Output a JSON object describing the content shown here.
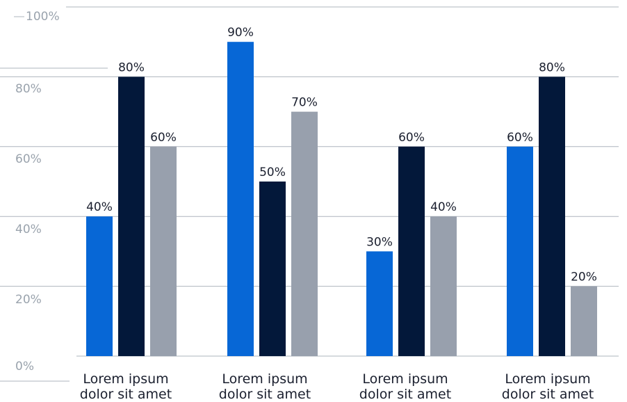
{
  "chart_data": {
    "type": "bar",
    "title": "",
    "xlabel": "",
    "ylabel": "",
    "ylim": [
      0,
      100
    ],
    "yticks": [
      "0%",
      "20%",
      "40%",
      "60%",
      "80%",
      "100%"
    ],
    "grid": true,
    "legend": "none",
    "categories": [
      [
        "Lorem ipsum",
        "dolor sit amet"
      ],
      [
        "Lorem ipsum",
        "dolor sit amet"
      ],
      [
        "Lorem ipsum",
        "dolor sit amet"
      ],
      [
        "Lorem ipsum",
        "dolor sit amet"
      ]
    ],
    "series": [
      {
        "color": "#0767d6",
        "values": [
          40,
          90,
          30,
          60
        ],
        "labels": [
          "40%",
          "90%",
          "30%",
          "60%"
        ]
      },
      {
        "color": "#03183a",
        "values": [
          80,
          50,
          60,
          80
        ],
        "labels": [
          "80%",
          "50%",
          "60%",
          "80%"
        ]
      },
      {
        "color": "#98a0ad",
        "values": [
          60,
          70,
          40,
          20
        ],
        "labels": [
          "60%",
          "70%",
          "40%",
          "20%"
        ]
      }
    ]
  }
}
